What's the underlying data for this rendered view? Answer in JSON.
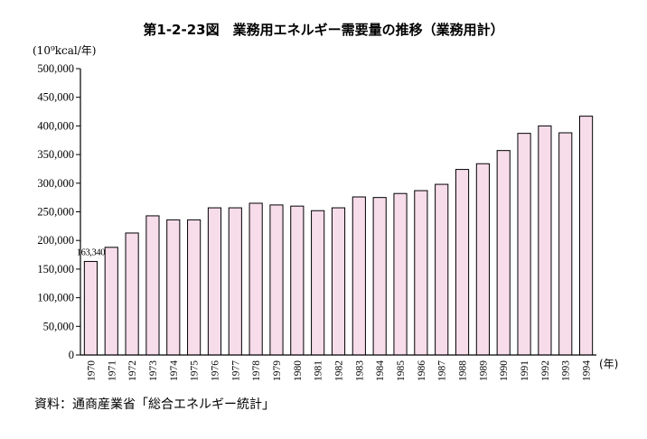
{
  "title": "第1-2-23図　業務用エネルギー需要量の推移（業務用計）",
  "source": "資料：通商産業省「総合エネルギー統計」",
  "chart_data": {
    "type": "bar",
    "unit_label": "(10⁹kcal/年)",
    "x_unit_label": "(年)",
    "categories": [
      "1970",
      "1971",
      "1972",
      "1973",
      "1974",
      "1975",
      "1976",
      "1977",
      "1978",
      "1979",
      "1980",
      "1981",
      "1982",
      "1983",
      "1984",
      "1985",
      "1986",
      "1987",
      "1988",
      "1989",
      "1990",
      "1991",
      "1992",
      "1993",
      "1994"
    ],
    "values": [
      163340,
      188000,
      213000,
      243000,
      236000,
      236000,
      257000,
      257000,
      265000,
      262000,
      260000,
      252000,
      257000,
      276000,
      275000,
      282000,
      287000,
      298000,
      324000,
      334000,
      357000,
      387000,
      400000,
      388000,
      417000
    ],
    "data_labels": [
      {
        "index": 0,
        "text": "163,340"
      }
    ],
    "ylim": [
      0,
      500000
    ],
    "yticks": [
      0,
      50000,
      100000,
      150000,
      200000,
      250000,
      300000,
      350000,
      400000,
      450000,
      500000
    ],
    "ytick_labels": [
      "0",
      "50,000",
      "100,000",
      "150,000",
      "200,000",
      "250,000",
      "300,000",
      "350,000",
      "400,000",
      "450,000",
      "500,000"
    ],
    "colors": {
      "bar_fill": "#f7dcea",
      "bar_stroke": "#000000"
    }
  }
}
